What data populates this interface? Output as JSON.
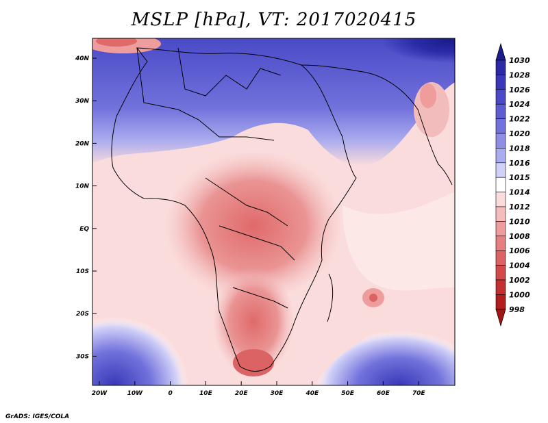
{
  "title": "MSLP [hPa], VT: 2017020415",
  "footer": "GrADS: IGES/COLA",
  "map": {
    "lat_labels": [
      "40N",
      "30N",
      "20N",
      "10N",
      "EQ",
      "10S",
      "20S",
      "30S"
    ],
    "lon_labels": [
      "20W",
      "10W",
      "0",
      "10E",
      "20E",
      "30E",
      "40E",
      "50E",
      "60E",
      "70E"
    ]
  },
  "colorbar": {
    "labels": [
      "1030",
      "1028",
      "1026",
      "1024",
      "1022",
      "1020",
      "1018",
      "1016",
      "1015",
      "1014",
      "1012",
      "1010",
      "1008",
      "1006",
      "1004",
      "1002",
      "1000",
      "998"
    ],
    "colors": [
      "#1c1c8c",
      "#2a2aa6",
      "#3838b8",
      "#4a4ac8",
      "#5d5dd2",
      "#7272dc",
      "#8e8ee6",
      "#ababef",
      "#d0d0f8",
      "#ffffff",
      "#fbdcdc",
      "#f6bcbc",
      "#ef9c9c",
      "#e67f7f",
      "#dc6363",
      "#d34848",
      "#c43030",
      "#b21e1e",
      "#a31515"
    ]
  }
}
